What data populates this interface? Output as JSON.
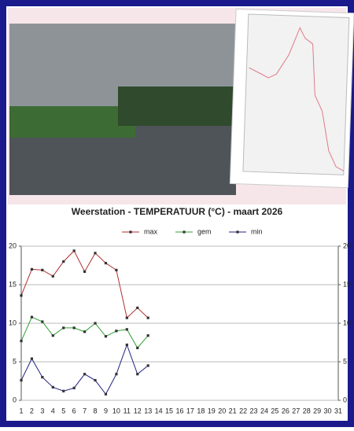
{
  "chart_data": {
    "type": "line",
    "title": "Weerstation  -  TEMPERATUUR (°C)  -  maart 2026",
    "categories": [
      1,
      2,
      3,
      4,
      5,
      6,
      7,
      8,
      9,
      10,
      11,
      12,
      13,
      14,
      15,
      16,
      17,
      18,
      19,
      20,
      21,
      22,
      23,
      24,
      25,
      26,
      27,
      28,
      29,
      30,
      31
    ],
    "series": [
      {
        "name": "max",
        "color": "#b03030",
        "values": [
          13.6,
          17.0,
          16.9,
          16.1,
          18.0,
          19.4,
          16.7,
          19.1,
          17.8,
          16.9,
          10.7,
          12.0,
          10.7,
          null,
          null,
          null,
          null,
          null,
          null,
          null,
          null,
          null,
          null,
          null,
          null,
          null,
          null,
          null,
          null,
          null,
          null
        ]
      },
      {
        "name": "gem",
        "color": "#30a030",
        "values": [
          7.7,
          10.8,
          10.2,
          8.4,
          9.4,
          9.4,
          8.9,
          10.0,
          8.3,
          9.0,
          9.2,
          6.8,
          8.4,
          null,
          null,
          null,
          null,
          null,
          null,
          null,
          null,
          null,
          null,
          null,
          null,
          null,
          null,
          null,
          null,
          null,
          null
        ]
      },
      {
        "name": "min",
        "color": "#202080",
        "values": [
          2.6,
          5.4,
          3.0,
          1.7,
          1.2,
          1.6,
          3.4,
          2.6,
          0.8,
          3.4,
          7.2,
          3.4,
          4.5,
          null,
          null,
          null,
          null,
          null,
          null,
          null,
          null,
          null,
          null,
          null,
          null,
          null,
          null,
          null,
          null,
          null,
          null
        ]
      }
    ],
    "ylim": [
      0,
      20
    ],
    "yticks": [
      0,
      5,
      10,
      15,
      20
    ],
    "y2lim": [
      0,
      20
    ],
    "y2ticks": [
      0,
      5,
      10,
      15,
      20
    ],
    "grid": true,
    "legend": "top"
  }
}
